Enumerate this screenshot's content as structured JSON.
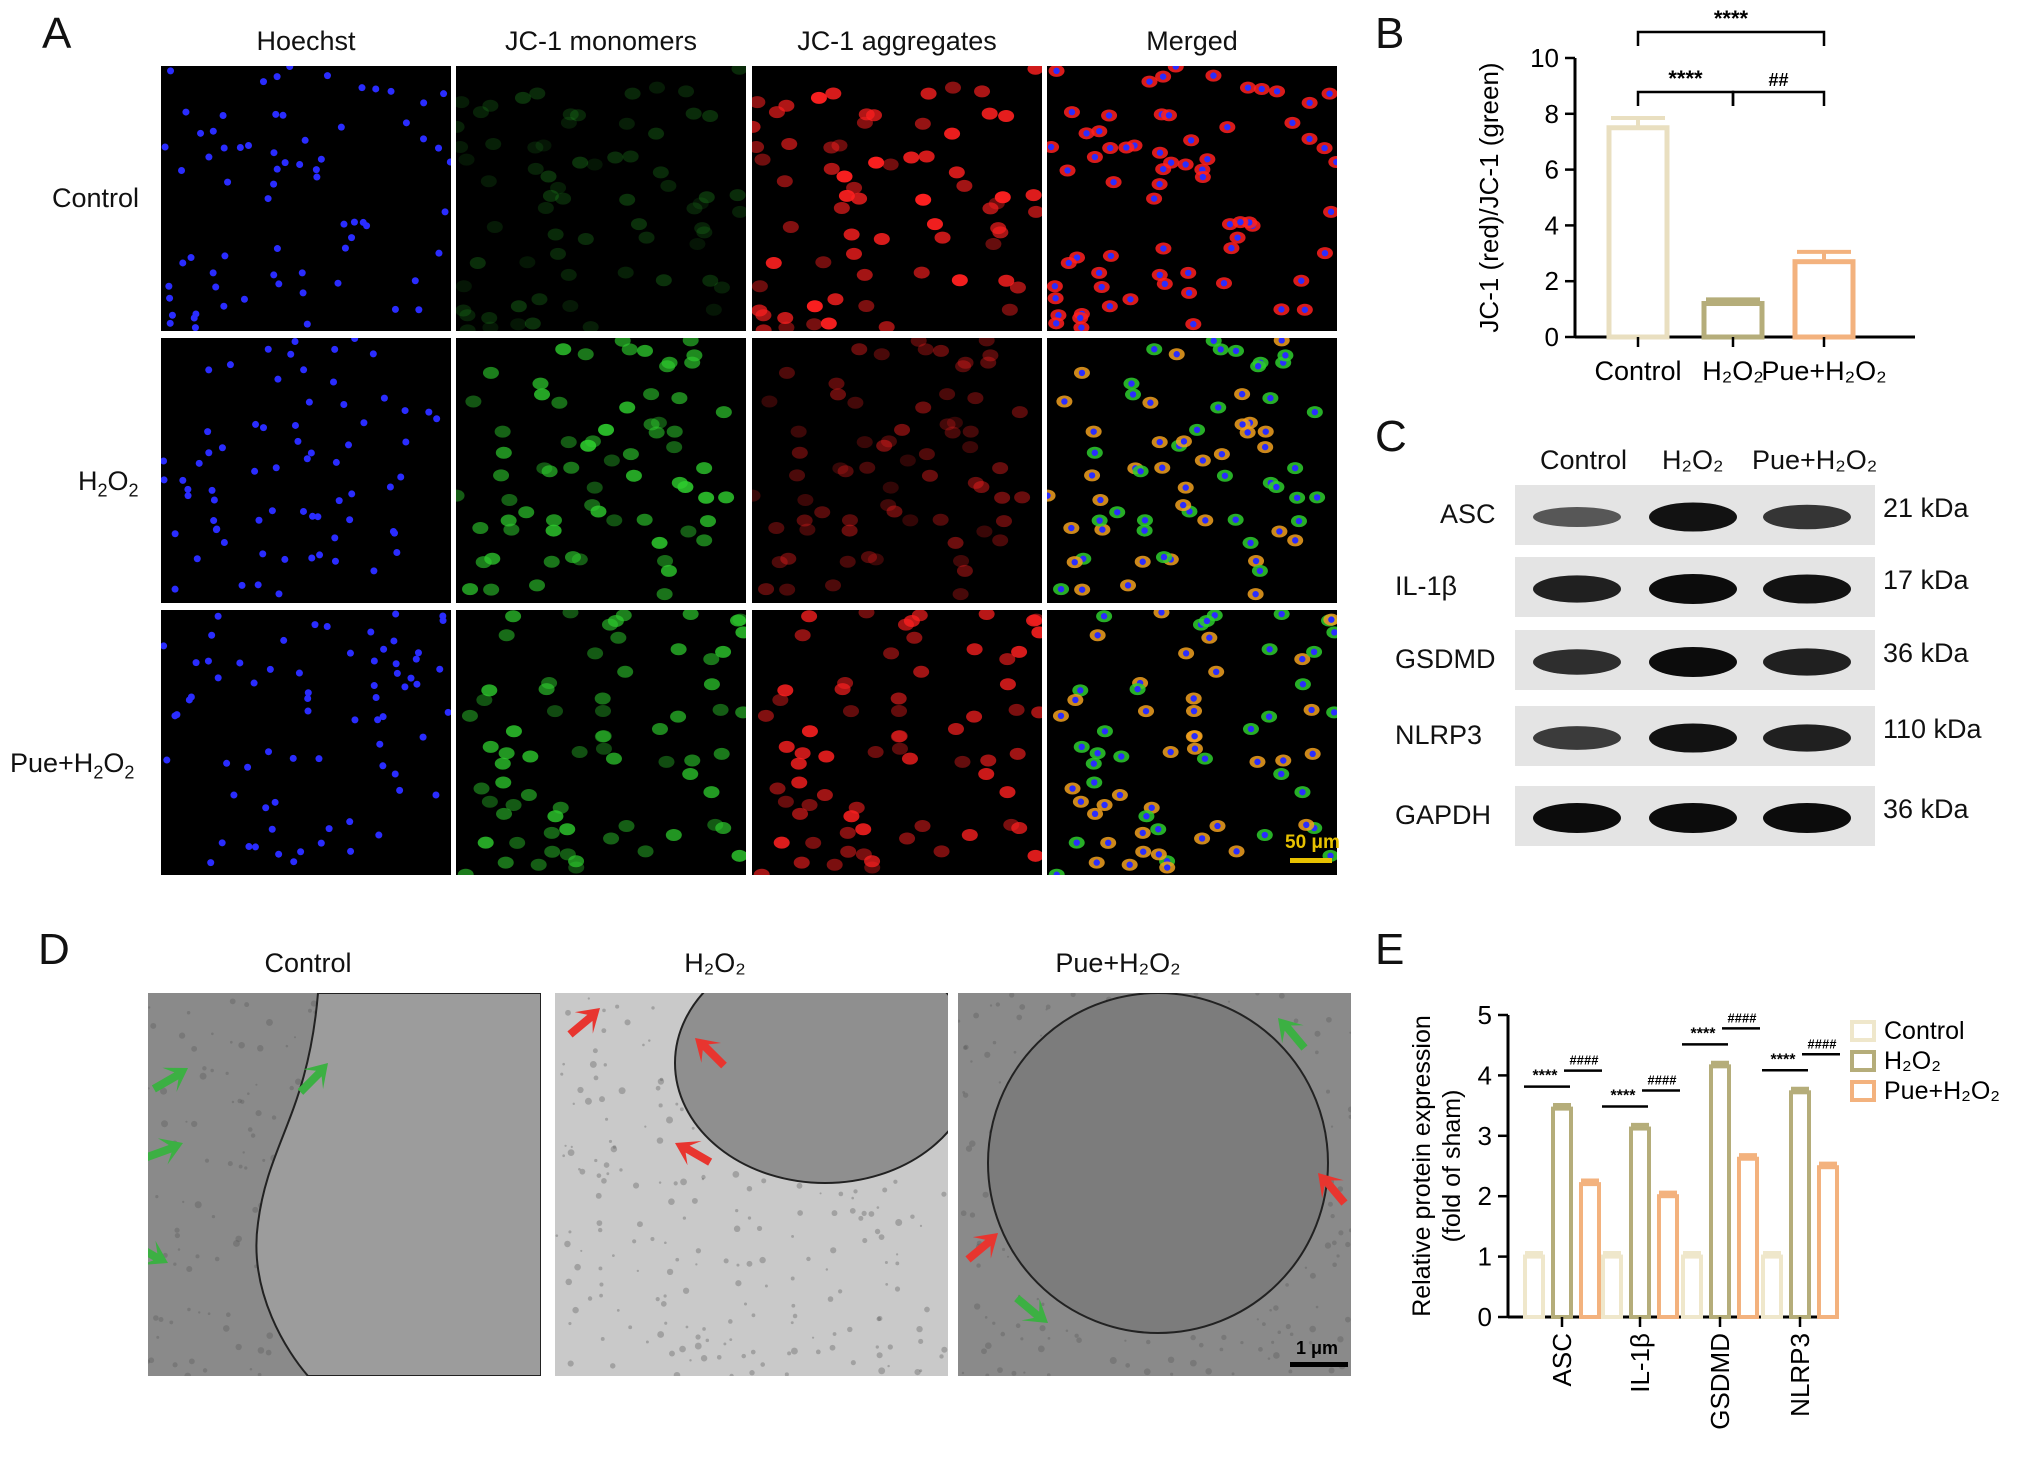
{
  "panels": {
    "a": "A",
    "b": "B",
    "c": "C",
    "d": "D",
    "e": "E"
  },
  "panel_a": {
    "columns": [
      "Hoechst",
      "JC-1 monomers",
      "JC-1 aggregates",
      "Merged"
    ],
    "rows": [
      {
        "main": "Control",
        "sub": "",
        "tail": ""
      },
      {
        "main": "H",
        "sub": "2",
        "tail": "O",
        "sub2": "2"
      },
      {
        "main": "Pue+H",
        "sub": "2",
        "tail": "O",
        "sub2": "2"
      }
    ],
    "scale_bar": "50 μm",
    "colors": {
      "hoechst": "#2a2cff",
      "monomer": "#2ecc2e",
      "aggregate": "#ff2020",
      "scale": "#e8c200"
    }
  },
  "panel_c": {
    "lanes": [
      "Control",
      "H₂O₂",
      "Pue+H₂O₂"
    ],
    "rows": [
      {
        "label": "ASC",
        "kda": "21 kDa",
        "intensity": [
          0.45,
          0.95,
          0.7
        ]
      },
      {
        "label": "IL-1β",
        "kda": "17 kDa",
        "intensity": [
          0.85,
          1.0,
          0.95
        ]
      },
      {
        "label": "GSDMD",
        "kda": "36 kDa",
        "intensity": [
          0.75,
          1.0,
          0.85
        ]
      },
      {
        "label": "NLRP3",
        "kda": "110 kDa",
        "intensity": [
          0.65,
          0.95,
          0.85
        ]
      },
      {
        "label": "GAPDH",
        "kda": "36 kDa",
        "intensity": [
          1.0,
          1.0,
          1.0
        ]
      }
    ]
  },
  "panel_d": {
    "columns": [
      "Control",
      "H₂O₂",
      "Pue+H₂O₂"
    ],
    "scale_bar": "1 μm",
    "arrow_colors": {
      "normal": "#3cb043",
      "damaged": "#e8352f"
    }
  },
  "chart_data": [
    {
      "type": "bar",
      "panel": "B",
      "categories": [
        "Control",
        "H₂O₂",
        "Pue+H₂O₂"
      ],
      "values": [
        7.5,
        1.2,
        2.7
      ],
      "errors": [
        0.35,
        0.15,
        0.35
      ],
      "colors": [
        "#e9dfc0",
        "#b5ad7a",
        "#f3b27e"
      ],
      "ylabel": "JC-1 (red)/JC-1 (green)",
      "xlabel": "",
      "ylim": [
        0,
        10
      ],
      "yticks": [
        0,
        2,
        4,
        6,
        8,
        10
      ],
      "significance": [
        {
          "from": 0,
          "to": 1,
          "label": "****"
        },
        {
          "from": 1,
          "to": 2,
          "label": "##"
        },
        {
          "from": 0,
          "to": 2,
          "label": "****"
        }
      ]
    },
    {
      "type": "bar",
      "panel": "E",
      "categories": [
        "ASC",
        "IL-1β",
        "GSDMD",
        "NLRP3"
      ],
      "series": [
        {
          "name": "Control",
          "values": [
            1.0,
            1.0,
            1.0,
            1.0
          ],
          "errors": [
            0.06,
            0.06,
            0.06,
            0.06
          ],
          "color": "#efe7cb"
        },
        {
          "name": "H₂O₂",
          "values": [
            3.45,
            3.12,
            4.15,
            3.72
          ],
          "errors": [
            0.06,
            0.06,
            0.06,
            0.06
          ],
          "color": "#b5ad7a"
        },
        {
          "name": "Pue+H₂O₂",
          "values": [
            2.2,
            2.0,
            2.62,
            2.48
          ],
          "errors": [
            0.06,
            0.06,
            0.06,
            0.06
          ],
          "color": "#f3b27e"
        }
      ],
      "ylabel": "Relative protein expression",
      "ylabel2": "(fold of sham)",
      "xlabel": "",
      "ylim": [
        0,
        5
      ],
      "yticks": [
        0,
        1,
        2,
        3,
        4,
        5
      ],
      "sig1": "****",
      "sig2": "####",
      "legend": "right"
    }
  ]
}
